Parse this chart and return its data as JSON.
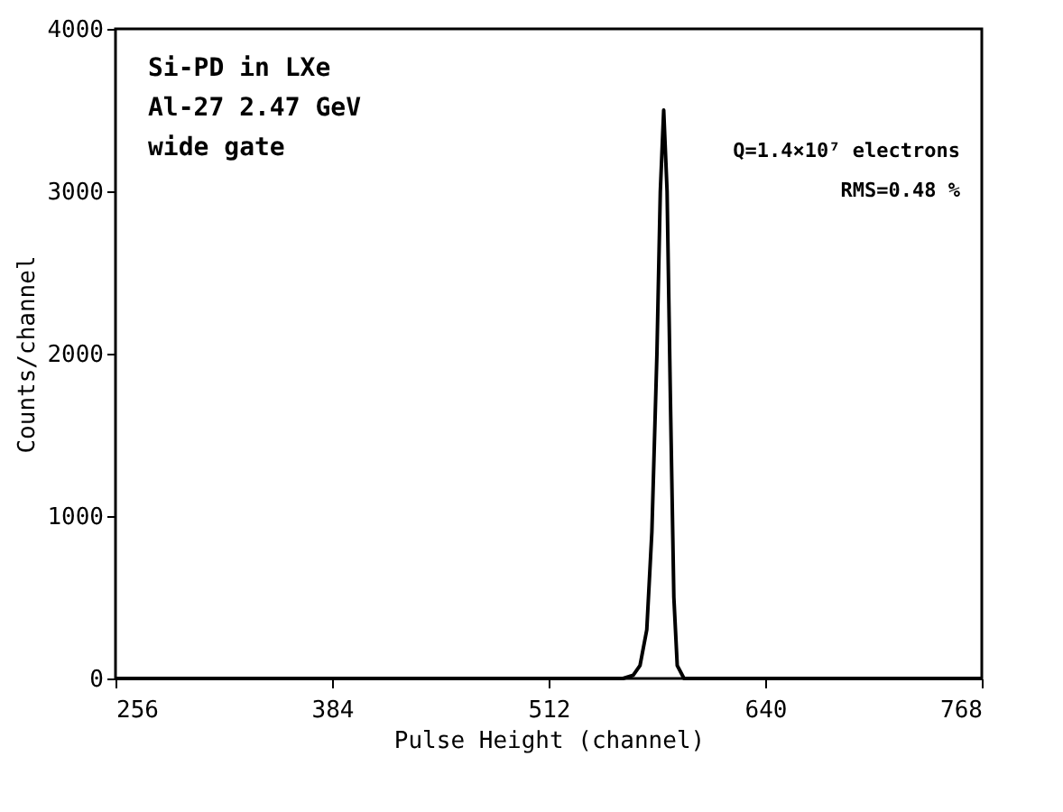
{
  "chart_data": {
    "type": "line",
    "xlabel": "Pulse Height (channel)",
    "ylabel": "Counts/channel",
    "x": [
      256,
      556,
      562,
      566,
      570,
      573,
      576,
      578,
      580,
      582,
      584,
      586,
      588,
      592,
      768
    ],
    "series": [
      {
        "color": "#000000",
        "values": [
          0,
          0,
          20,
          80,
          300,
          900,
          2000,
          3000,
          3500,
          3000,
          1700,
          500,
          80,
          0,
          0
        ]
      }
    ],
    "xlim": [
      256,
      768
    ],
    "xticks": [
      256,
      384,
      512,
      640,
      768
    ],
    "ylim": [
      0,
      4000
    ],
    "yticks": [
      0,
      1000,
      2000,
      3000,
      4000
    ],
    "grid": false,
    "marker": "none",
    "line_style": "solid",
    "annotations": [
      "Si-PD in LXe",
      "Al-27  2.47 GeV",
      "wide gate",
      "Q=1.4×10⁷ electrons",
      "RMS=0.48 %"
    ]
  }
}
